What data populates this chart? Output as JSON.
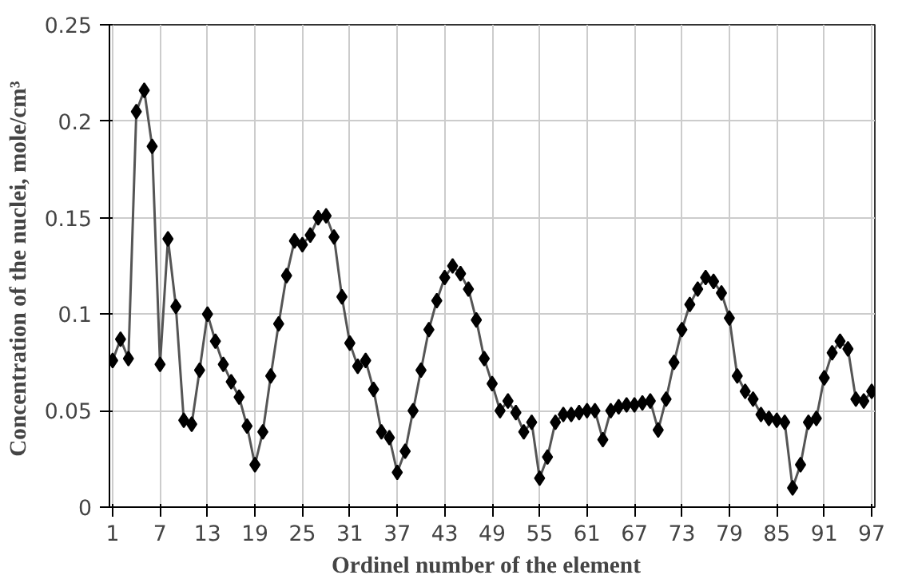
{
  "chart_data": {
    "type": "line",
    "xlabel": "Ordinel  number  of the element",
    "ylabel": "Concentration of the nuclei,  mole/cm³",
    "x": [
      1,
      2,
      3,
      4,
      5,
      6,
      7,
      8,
      9,
      10,
      11,
      12,
      13,
      14,
      15,
      16,
      17,
      18,
      19,
      20,
      21,
      22,
      23,
      24,
      25,
      26,
      27,
      28,
      29,
      30,
      31,
      32,
      33,
      34,
      35,
      36,
      37,
      38,
      39,
      40,
      41,
      42,
      43,
      44,
      45,
      46,
      47,
      48,
      49,
      50,
      51,
      52,
      53,
      54,
      55,
      56,
      57,
      58,
      59,
      60,
      61,
      62,
      63,
      64,
      65,
      66,
      67,
      68,
      69,
      70,
      71,
      72,
      73,
      74,
      75,
      76,
      77,
      78,
      79,
      80,
      81,
      82,
      83,
      84,
      85,
      86,
      87,
      88,
      89,
      90,
      91,
      92,
      93,
      94,
      95,
      96,
      97
    ],
    "series": [
      {
        "color": "#000000",
        "values": [
          0.076,
          0.087,
          0.077,
          0.205,
          0.216,
          0.187,
          0.074,
          0.139,
          0.104,
          0.045,
          0.043,
          0.071,
          0.1,
          0.086,
          0.074,
          0.065,
          0.057,
          0.042,
          0.022,
          0.039,
          0.068,
          0.095,
          0.12,
          0.138,
          0.136,
          0.141,
          0.15,
          0.151,
          0.14,
          0.109,
          0.085,
          0.073,
          0.076,
          0.061,
          0.039,
          0.036,
          0.018,
          0.029,
          0.05,
          0.071,
          0.092,
          0.107,
          0.119,
          0.125,
          0.121,
          0.113,
          0.097,
          0.077,
          0.064,
          0.05,
          0.055,
          0.049,
          0.039,
          0.044,
          0.015,
          0.026,
          0.044,
          0.048,
          0.048,
          0.049,
          0.05,
          0.05,
          0.035,
          0.05,
          0.052,
          0.053,
          0.053,
          0.054,
          0.055,
          0.04,
          0.056,
          0.075,
          0.092,
          0.105,
          0.113,
          0.119,
          0.117,
          0.111,
          0.098,
          0.068,
          0.06,
          0.056,
          0.048,
          0.046,
          0.045,
          0.044,
          0.01,
          0.022,
          0.044,
          0.046,
          0.067,
          0.08,
          0.086,
          0.082,
          0.056,
          0.055,
          0.06
        ]
      }
    ],
    "xlim": [
      0.6,
      97.4
    ],
    "xticks": [
      1,
      7,
      13,
      19,
      25,
      31,
      37,
      43,
      49,
      55,
      61,
      67,
      73,
      79,
      85,
      91,
      97
    ],
    "ylim": [
      0,
      0.25
    ],
    "yticks": [
      0,
      0.05,
      0.1,
      0.15,
      0.2,
      0.25
    ],
    "grid": true,
    "marker": "diamond",
    "line_style": "solid"
  }
}
